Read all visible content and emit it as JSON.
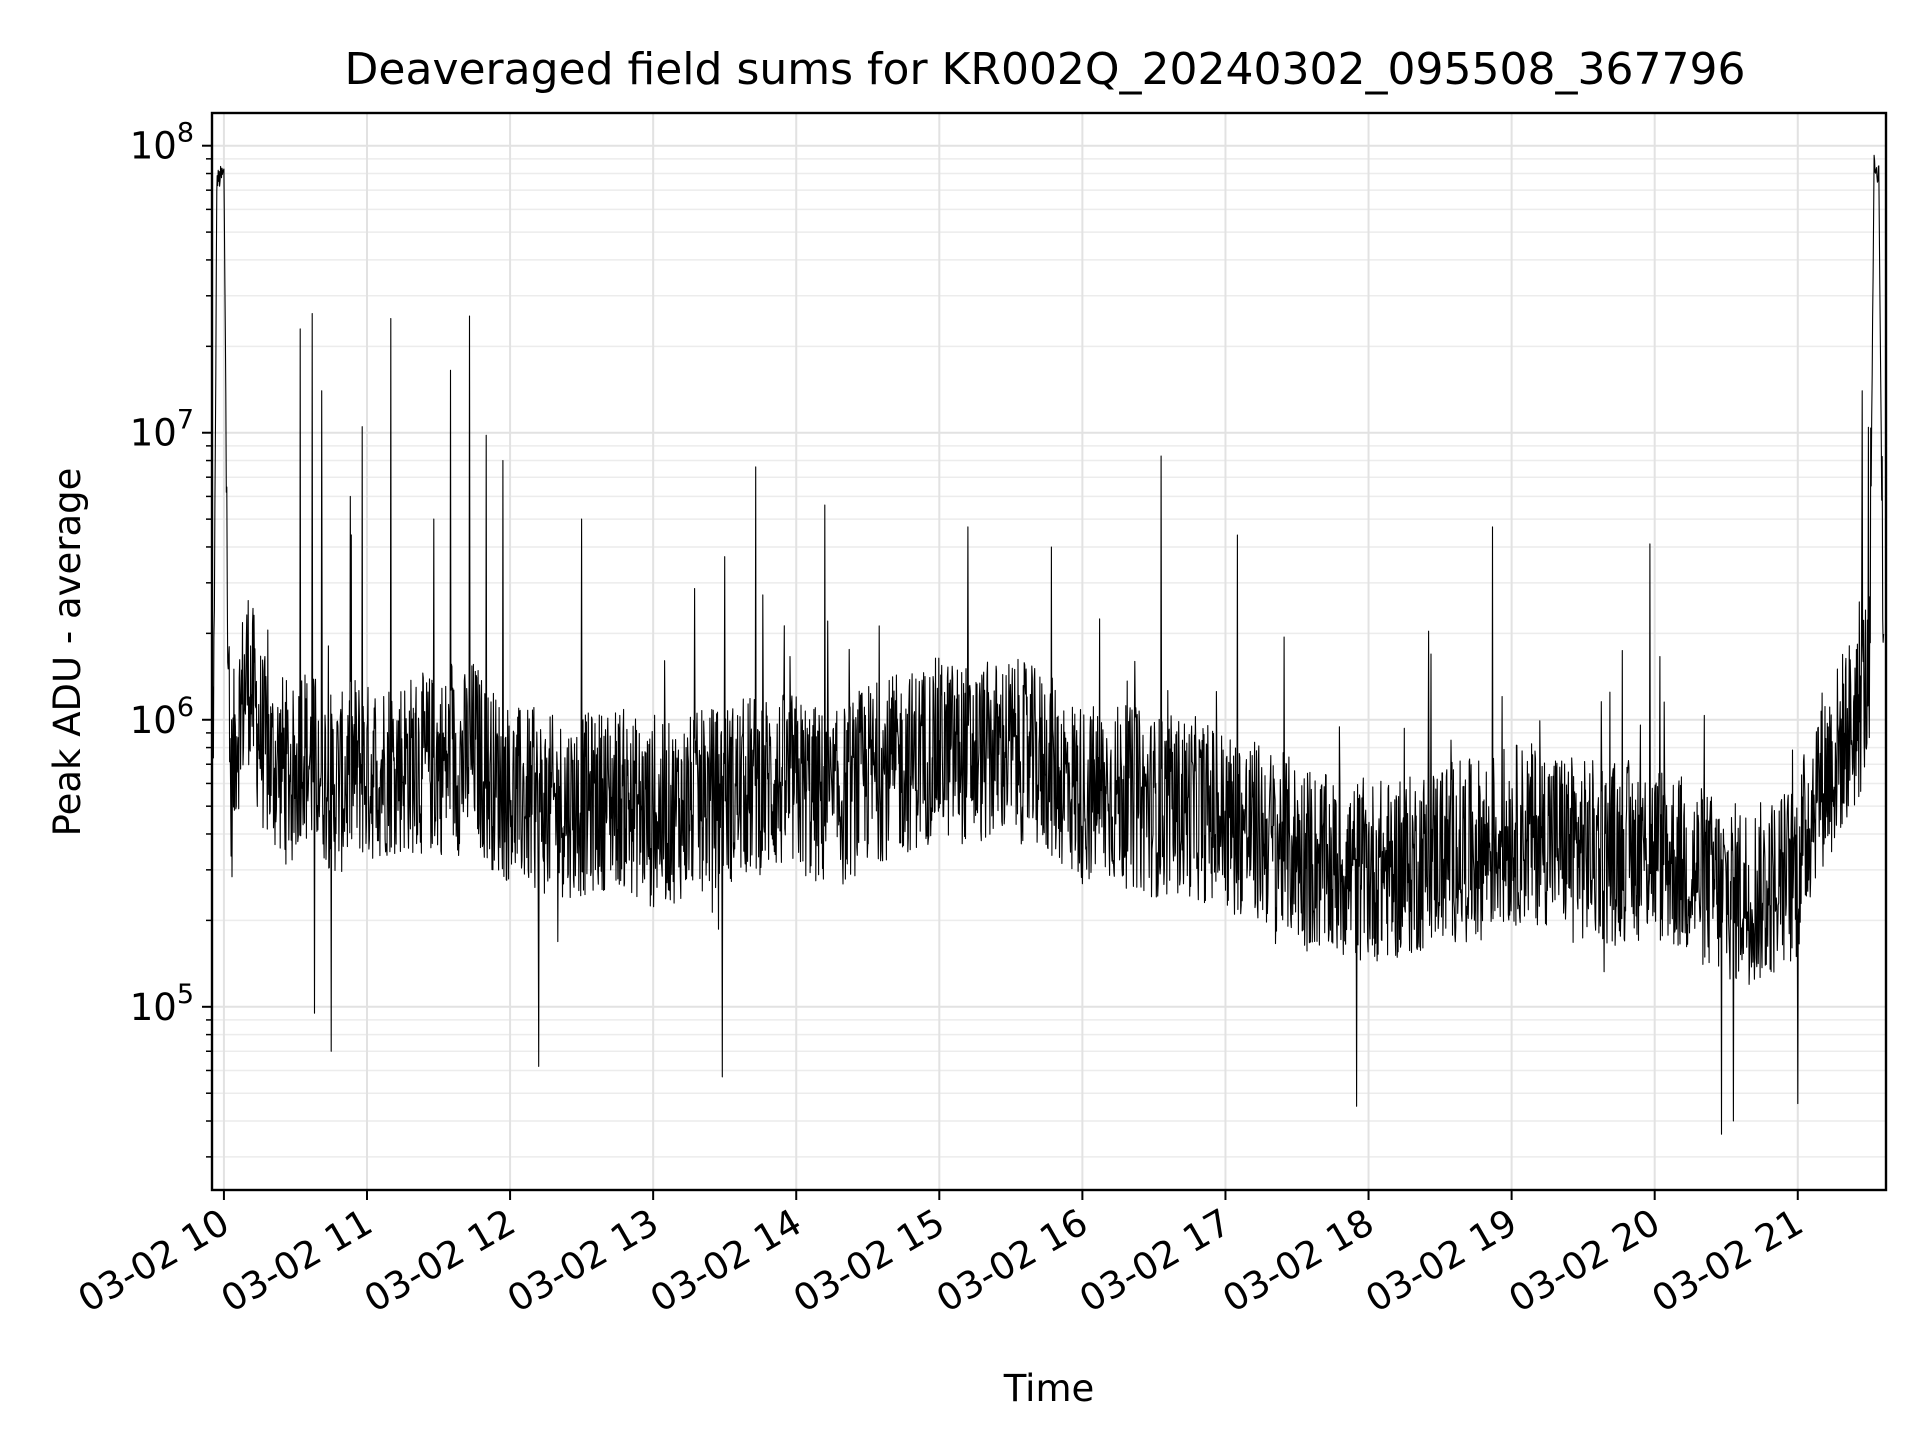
{
  "chart_data": {
    "type": "line",
    "title": "Deaveraged field sums for KR002Q_20240302_095508_367796",
    "xlabel": "Time",
    "ylabel": "Peak ADU - average",
    "yscale": "log",
    "ylim": [
      23000,
      130000000
    ],
    "xlim": [
      "2024-03-02 09:55",
      "2024-03-02 21:37"
    ],
    "grid": true,
    "line_color": "#000000",
    "x_tick_labels": [
      "03-02 10",
      "03-02 11",
      "03-02 12",
      "03-02 13",
      "03-02 14",
      "03-02 15",
      "03-02 16",
      "03-02 17",
      "03-02 18",
      "03-02 19",
      "03-02 20",
      "03-02 21"
    ],
    "y_tick_labels": [
      {
        "base": "10",
        "exp": "5",
        "value": 100000
      },
      {
        "base": "10",
        "exp": "6",
        "value": 1000000
      },
      {
        "base": "10",
        "exp": "7",
        "value": 10000000
      },
      {
        "base": "10",
        "exp": "8",
        "value": 100000000
      }
    ],
    "series": [
      {
        "x": [
          "2024-03-02 09:55",
          "2024-03-02 09:56",
          "2024-03-02 09:57",
          "2024-03-02 10:00",
          "2024-03-02 10:02",
          "2024-03-02 10:03",
          "2024-03-02 10:05",
          "2024-03-02 10:08",
          "2024-03-02 10:10",
          "2024-03-02 10:15",
          "2024-03-02 10:20",
          "2024-03-02 10:25",
          "2024-03-02 10:30",
          "2024-03-02 10:33",
          "2024-03-02 10:35",
          "2024-03-02 10:40",
          "2024-03-02 10:45",
          "2024-03-02 10:50",
          "2024-03-02 10:55",
          "2024-03-02 11:00",
          "2024-03-02 11:10",
          "2024-03-02 11:20",
          "2024-03-02 11:30",
          "2024-03-02 11:40",
          "2024-03-02 11:45",
          "2024-03-02 11:50",
          "2024-03-02 12:00",
          "2024-03-02 12:15",
          "2024-03-02 12:30",
          "2024-03-02 12:45",
          "2024-03-02 13:00",
          "2024-03-02 13:15",
          "2024-03-02 13:30",
          "2024-03-02 13:45",
          "2024-03-02 14:00",
          "2024-03-02 14:15",
          "2024-03-02 14:30",
          "2024-03-02 14:45",
          "2024-03-02 15:00",
          "2024-03-02 15:15",
          "2024-03-02 15:30",
          "2024-03-02 15:45",
          "2024-03-02 16:00",
          "2024-03-02 16:15",
          "2024-03-02 16:30",
          "2024-03-02 16:45",
          "2024-03-02 17:00",
          "2024-03-02 17:15",
          "2024-03-02 17:30",
          "2024-03-02 17:45",
          "2024-03-02 18:00",
          "2024-03-02 18:15",
          "2024-03-02 18:30",
          "2024-03-02 18:45",
          "2024-03-02 19:00",
          "2024-03-02 19:15",
          "2024-03-02 19:30",
          "2024-03-02 19:45",
          "2024-03-02 20:00",
          "2024-03-02 20:15",
          "2024-03-02 20:30",
          "2024-03-02 20:45",
          "2024-03-02 21:00",
          "2024-03-02 21:08",
          "2024-03-02 21:15",
          "2024-03-02 21:20",
          "2024-03-02 21:25",
          "2024-03-02 21:30",
          "2024-03-02 21:32",
          "2024-03-02 21:34",
          "2024-03-02 21:36"
        ],
        "y": [
          700000,
          1700000,
          75000000,
          80000000,
          1000000,
          520000,
          900000,
          1200000,
          1500000,
          900000,
          700000,
          700000,
          600000,
          900000,
          700000,
          700000,
          600000,
          600000,
          700000,
          650000,
          700000,
          700000,
          700000,
          700000,
          800000,
          650000,
          550000,
          500000,
          500000,
          550000,
          450000,
          500000,
          550000,
          600000,
          600000,
          500000,
          650000,
          700000,
          800000,
          750000,
          800000,
          700000,
          550000,
          550000,
          500000,
          500000,
          450000,
          400000,
          350000,
          300000,
          300000,
          300000,
          350000,
          350000,
          400000,
          400000,
          350000,
          350000,
          350000,
          300000,
          250000,
          250000,
          300000,
          600000,
          700000,
          900000,
          1000000,
          1500000,
          85000000,
          80000000,
          1200000
        ],
        "spikes": [
          {
            "x": "2024-03-02 10:32",
            "y": 23000000
          },
          {
            "x": "2024-03-02 10:37",
            "y": 26000000
          },
          {
            "x": "2024-03-02 10:41",
            "y": 14000000
          },
          {
            "x": "2024-03-02 10:53",
            "y": 6000000
          },
          {
            "x": "2024-03-02 10:58",
            "y": 10500000
          },
          {
            "x": "2024-03-02 11:10",
            "y": 25000000
          },
          {
            "x": "2024-03-02 11:28",
            "y": 5000000
          },
          {
            "x": "2024-03-02 11:35",
            "y": 16500000
          },
          {
            "x": "2024-03-02 11:43",
            "y": 25500000
          },
          {
            "x": "2024-03-02 11:50",
            "y": 9800000
          },
          {
            "x": "2024-03-02 11:57",
            "y": 8000000
          },
          {
            "x": "2024-03-02 12:30",
            "y": 5000000
          },
          {
            "x": "2024-03-02 13:30",
            "y": 3700000
          },
          {
            "x": "2024-03-02 13:43",
            "y": 7600000
          },
          {
            "x": "2024-03-02 14:12",
            "y": 5600000
          },
          {
            "x": "2024-03-02 15:12",
            "y": 4700000
          },
          {
            "x": "2024-03-02 15:47",
            "y": 4000000
          },
          {
            "x": "2024-03-02 16:33",
            "y": 8300000
          },
          {
            "x": "2024-03-02 17:05",
            "y": 4400000
          },
          {
            "x": "2024-03-02 18:52",
            "y": 4700000
          },
          {
            "x": "2024-03-02 19:58",
            "y": 4100000
          },
          {
            "x": "2024-03-02 21:27",
            "y": 14000000
          }
        ],
        "dips": [
          {
            "x": "2024-03-02 10:38",
            "y": 95000
          },
          {
            "x": "2024-03-02 10:45",
            "y": 70000
          },
          {
            "x": "2024-03-02 12:12",
            "y": 62000
          },
          {
            "x": "2024-03-02 13:29",
            "y": 57000
          },
          {
            "x": "2024-03-02 17:55",
            "y": 45000
          },
          {
            "x": "2024-03-02 20:28",
            "y": 36000
          },
          {
            "x": "2024-03-02 20:33",
            "y": 40000
          },
          {
            "x": "2024-03-02 21:00",
            "y": 46000
          }
        ]
      }
    ]
  }
}
